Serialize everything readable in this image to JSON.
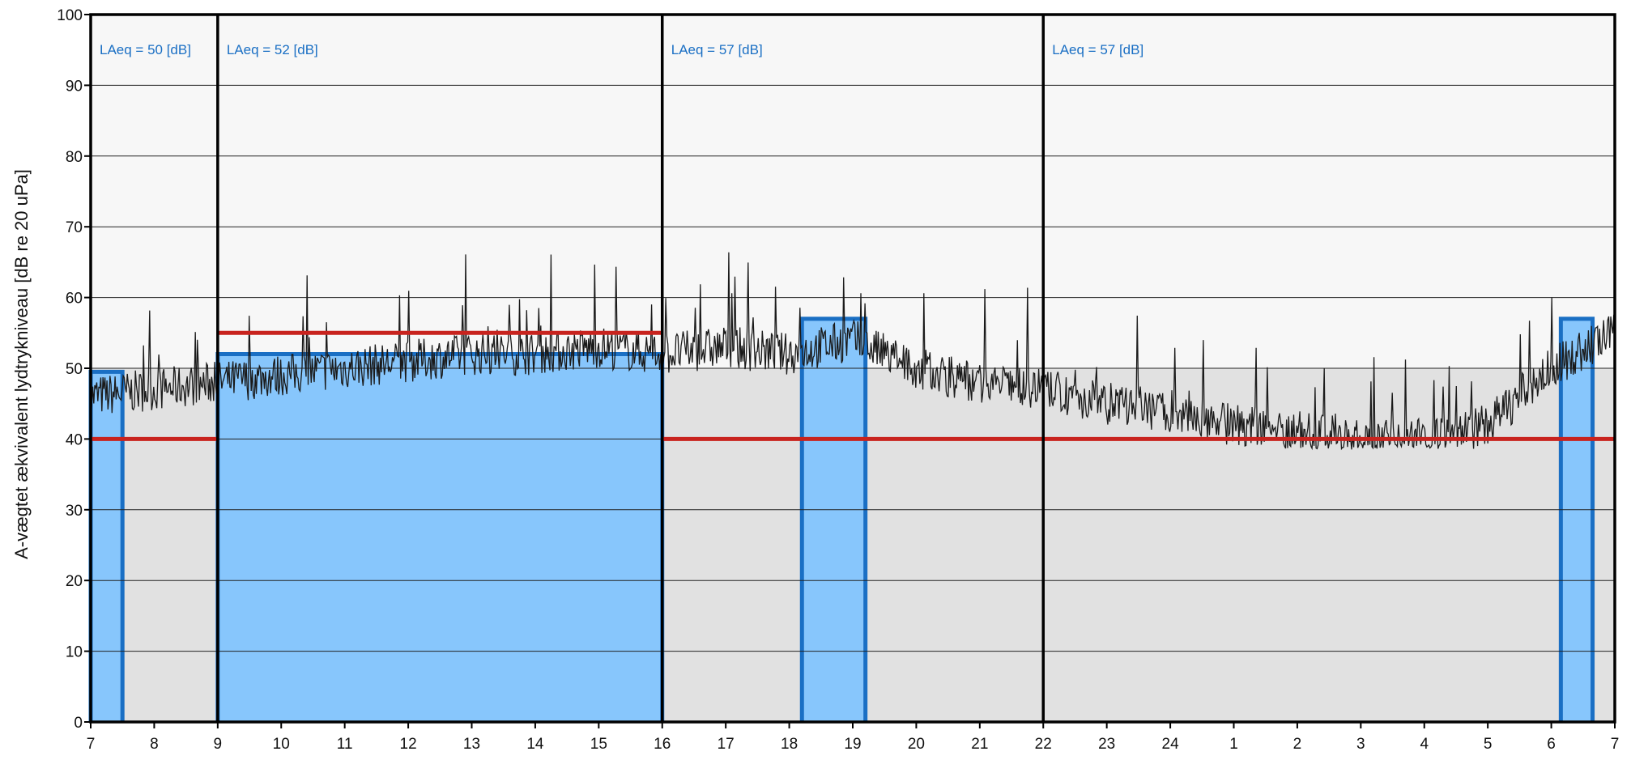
{
  "chart_data": {
    "type": "line",
    "ylabel": "A-vægtet ækvivalent lydtrykniveau [dB re 20 uPa]",
    "xlabel": "",
    "ylim": [
      0,
      100
    ],
    "y_ticks": [
      0,
      10,
      20,
      30,
      40,
      50,
      60,
      70,
      80,
      90,
      100
    ],
    "x_range_hours_labels": [
      "7",
      "8",
      "9",
      "10",
      "11",
      "12",
      "13",
      "14",
      "15",
      "16",
      "17",
      "18",
      "19",
      "20",
      "21",
      "22",
      "23",
      "24",
      "1",
      "2",
      "3",
      "4",
      "5",
      "6",
      "7"
    ],
    "grid": true,
    "colors": {
      "plot_background": "#e1e1e1",
      "upper_background": "#f7f7f7",
      "area_fill": "#87c6fc",
      "area_edge": "#1a6fc4",
      "limit_line": "#c8231e",
      "signal": "#1a1a1a",
      "label": "#1a6fc4"
    },
    "periods": [
      {
        "from": "7",
        "to": "9",
        "label": "LAeq = 50 [dB]"
      },
      {
        "from": "9",
        "to": "16",
        "label": "LAeq = 52 [dB]"
      },
      {
        "from": "16",
        "to": "22",
        "label": "LAeq = 57 [dB]"
      },
      {
        "from": "22",
        "to": "7",
        "label": "LAeq = 57 [dB]"
      }
    ],
    "limit_lines": [
      {
        "from": "7",
        "to": "9",
        "value": 40
      },
      {
        "from": "9",
        "to": "16",
        "value": 55
      },
      {
        "from": "16",
        "to": "7",
        "value": 40
      }
    ],
    "measured_blocks": [
      {
        "from": "7.0",
        "to": "7.5",
        "value": 49.5
      },
      {
        "from": "9.0",
        "to": "16.0",
        "value": 52
      },
      {
        "from": "18.2",
        "to": "19.2",
        "value": 57
      },
      {
        "from": "6.15",
        "to": "6.65",
        "value": 57
      }
    ],
    "series": [
      {
        "style": "noisy time history",
        "x": [
          "7",
          "8",
          "9",
          "10",
          "11",
          "12",
          "13",
          "14",
          "15",
          "16",
          "17",
          "18",
          "19",
          "20",
          "21",
          "22",
          "23",
          "24",
          "1",
          "2",
          "3",
          "4",
          "5",
          "6",
          "7"
        ],
        "values": [
          46,
          47,
          48,
          49,
          50,
          51,
          52,
          52,
          53,
          52,
          53,
          52,
          54,
          50,
          48,
          47,
          45,
          44,
          42,
          41,
          40,
          40,
          42,
          50,
          55
        ]
      }
    ]
  }
}
